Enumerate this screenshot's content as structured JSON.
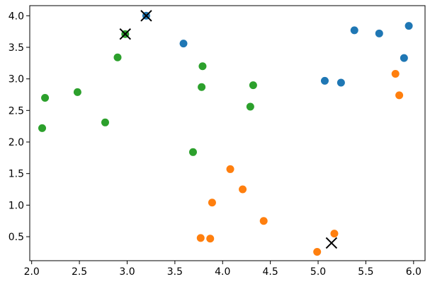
{
  "chart_data": {
    "type": "scatter",
    "title": "",
    "xlabel": "",
    "ylabel": "",
    "xlim": [
      1.98,
      6.12
    ],
    "ylim": [
      0.12,
      4.16
    ],
    "x_ticks": [
      2.0,
      2.5,
      3.0,
      3.5,
      4.0,
      4.5,
      5.0,
      5.5,
      6.0
    ],
    "x_tick_labels": [
      "2.0",
      "2.5",
      "3.0",
      "3.5",
      "4.0",
      "4.5",
      "5.0",
      "5.5",
      "6.0"
    ],
    "y_ticks": [
      0.5,
      1.0,
      1.5,
      2.0,
      2.5,
      3.0,
      3.5,
      4.0
    ],
    "y_tick_labels": [
      "0.5",
      "1.0",
      "1.5",
      "2.0",
      "2.5",
      "3.0",
      "3.5",
      "4.0"
    ],
    "grid": false,
    "series": [
      {
        "color": "#1f77b4",
        "x": [
          3.2,
          3.59,
          5.07,
          5.24,
          5.38,
          5.64,
          5.9,
          5.95
        ],
        "y": [
          4.0,
          3.56,
          2.97,
          2.94,
          3.77,
          3.72,
          3.33,
          3.84
        ]
      },
      {
        "color": "#ff7f0e",
        "x": [
          3.77,
          3.87,
          3.89,
          4.08,
          4.21,
          4.43,
          4.99,
          5.17,
          5.81,
          5.85
        ],
        "y": [
          0.48,
          0.47,
          1.04,
          1.57,
          1.25,
          0.75,
          0.26,
          0.55,
          3.08,
          2.74
        ]
      },
      {
        "color": "#2ca02c",
        "x": [
          2.11,
          2.14,
          2.48,
          2.77,
          2.9,
          2.98,
          3.69,
          3.78,
          3.79,
          4.29,
          4.32
        ],
        "y": [
          2.22,
          2.7,
          2.79,
          2.31,
          3.34,
          3.71,
          1.84,
          2.87,
          3.2,
          2.56,
          2.9
        ]
      }
    ],
    "markers": {
      "shape": "x",
      "color": "#000000",
      "x": [
        3.2,
        2.98,
        5.14
      ],
      "y": [
        4.0,
        3.71,
        0.4
      ]
    }
  }
}
